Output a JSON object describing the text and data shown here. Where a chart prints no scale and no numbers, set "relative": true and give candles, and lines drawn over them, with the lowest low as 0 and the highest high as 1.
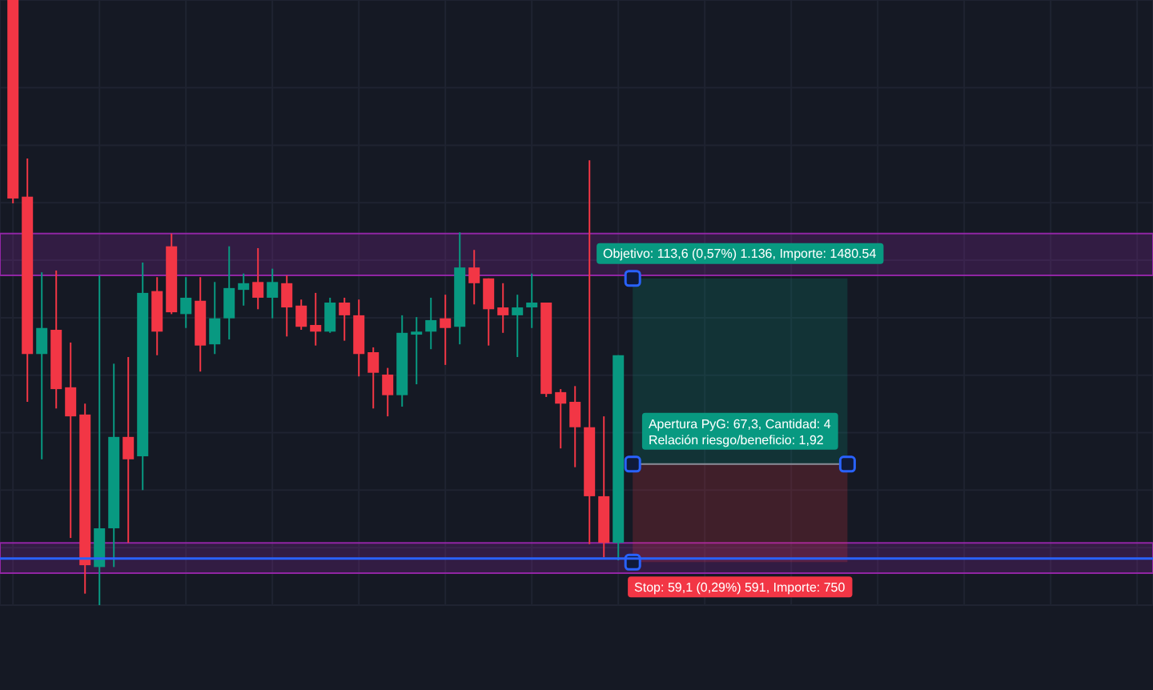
{
  "chart_data": {
    "type": "candlestick",
    "relative": true,
    "categories": [
      null,
      null,
      null,
      null,
      null,
      null,
      null,
      null,
      null,
      null,
      null,
      null,
      null,
      null,
      null,
      null,
      null,
      null,
      null,
      null,
      null,
      null,
      null,
      null,
      null,
      null,
      null,
      null,
      null,
      null,
      null,
      null,
      null,
      null,
      null,
      null,
      null,
      null,
      null,
      null,
      null,
      null,
      null,
      null,
      null,
      null,
      null,
      null,
      null,
      null,
      null,
      null,
      null,
      null,
      null,
      null,
      null,
      null,
      null,
      null,
      null,
      null,
      null,
      null,
      null,
      null,
      null,
      null,
      null,
      null,
      null,
      null,
      null,
      null,
      null,
      null,
      null,
      null,
      null,
      null
    ],
    "ohlc": [
      [
        1,
        1,
        0.664,
        0.672
      ],
      [
        0.675,
        0.738,
        0.336,
        0.415
      ],
      [
        0.415,
        0.55,
        0.241,
        0.458
      ],
      [
        0.455,
        0.553,
        0.325,
        0.357
      ],
      [
        0.36,
        0.434,
        0.111,
        0.312
      ],
      [
        0.315,
        0.333,
        0.019,
        0.066
      ],
      [
        0.063,
        0.545,
        0,
        0.127
      ],
      [
        0.127,
        0.399,
        0.063,
        0.278
      ],
      [
        0.278,
        0.41,
        0.103,
        0.241
      ],
      [
        0.246,
        0.566,
        0.19,
        0.516
      ],
      [
        0.519,
        0.542,
        0.413,
        0.452
      ],
      [
        0.593,
        0.614,
        0.481,
        0.484
      ],
      [
        0.481,
        0.542,
        0.458,
        0.508
      ],
      [
        0.503,
        0.542,
        0.386,
        0.429
      ],
      [
        0.431,
        0.534,
        0.415,
        0.474
      ],
      [
        0.474,
        0.593,
        0.439,
        0.524
      ],
      [
        0.521,
        0.548,
        0.495,
        0.532
      ],
      [
        0.534,
        0.59,
        0.489,
        0.508
      ],
      [
        0.508,
        0.556,
        0.474,
        0.534
      ],
      [
        0.532,
        0.545,
        0.444,
        0.492
      ],
      [
        0.495,
        0.505,
        0.455,
        0.46
      ],
      [
        0.463,
        0.516,
        0.429,
        0.452
      ],
      [
        0.452,
        0.508,
        0.45,
        0.5
      ],
      [
        0.5,
        0.508,
        0.437,
        0.479
      ],
      [
        0.479,
        0.505,
        0.378,
        0.415
      ],
      [
        0.418,
        0.426,
        0.325,
        0.384
      ],
      [
        0.381,
        0.392,
        0.312,
        0.347
      ],
      [
        0.347,
        0.479,
        0.328,
        0.45
      ],
      [
        0.447,
        0.476,
        0.365,
        0.452
      ],
      [
        0.452,
        0.508,
        0.423,
        0.471
      ],
      [
        0.474,
        0.513,
        0.397,
        0.458
      ],
      [
        0.46,
        0.616,
        0.431,
        0.558
      ],
      [
        0.558,
        0.587,
        0.497,
        0.532
      ],
      [
        0.54,
        0.54,
        0.429,
        0.489
      ],
      [
        0.492,
        0.532,
        0.45,
        0.479
      ],
      [
        0.479,
        0.513,
        0.41,
        0.492
      ],
      [
        0.492,
        0.548,
        0.458,
        0.5
      ],
      [
        0.5,
        0.5,
        0.344,
        0.349
      ],
      [
        0.352,
        0.357,
        0.259,
        0.333
      ],
      [
        0.336,
        0.362,
        0.228,
        0.294
      ],
      [
        0.294,
        0.735,
        0.101,
        0.18
      ],
      [
        0.18,
        0.312,
        0.079,
        0.103
      ],
      [
        0.103,
        0.413,
        0.074,
        0.413
      ],
      null,
      null,
      null,
      null,
      null,
      null,
      null,
      null,
      null,
      null,
      null,
      null,
      null,
      null,
      null,
      null,
      null,
      null,
      null,
      null,
      null,
      null,
      null,
      null,
      null,
      null,
      null,
      null,
      null,
      null,
      null,
      null,
      null,
      null,
      null,
      null,
      null
    ],
    "colors": [
      "#f23645",
      "#f23645",
      "#089981",
      "#f23645",
      "#f23645",
      "#f23645",
      "#089981",
      "#089981",
      "#f23645",
      "#089981",
      "#f23645",
      "#f23645",
      "#089981",
      "#f23645",
      "#089981",
      "#089981",
      "#089981",
      "#f23645",
      "#089981",
      "#f23645",
      "#f23645",
      "#f23645",
      "#089981",
      "#f23645",
      "#f23645",
      "#f23645",
      "#f23645",
      "#089981",
      "#089981",
      "#089981",
      "#f23645",
      "#089981",
      "#f23645",
      "#f23645",
      "#f23645",
      "#089981",
      "#089981",
      "#f23645",
      "#f23645",
      "#f23645",
      "#f23645",
      "#f23645",
      "#089981",
      null,
      null,
      null,
      null,
      null,
      null,
      null,
      null,
      null,
      null,
      null,
      null,
      null,
      null,
      null,
      null,
      null,
      null,
      null,
      null,
      null,
      null,
      null,
      null,
      null,
      null,
      null,
      null,
      null,
      null,
      null,
      null,
      null,
      null,
      null,
      null,
      null
    ],
    "grid": true,
    "bands": [
      {
        "axis": "y",
        "from": 0.545,
        "to": 0.614,
        "color": "#9c27b0"
      },
      {
        "axis": "y",
        "from": 0.053,
        "to": 0.103,
        "color": "#9c27b0"
      },
      {
        "axis": "y",
        "from": 0.233,
        "to": 0.54,
        "color": "#089981",
        "label": "Objetivo: 113,6 (0,57%) 1.136, Importe: 1480.54"
      },
      {
        "axis": "y",
        "from": 0.233,
        "to": 0.071,
        "color": "#f23645",
        "label": "Stop: 59,1 (0,29%) 591, Importe: 750"
      }
    ],
    "ref_lines": [
      {
        "axis": "y",
        "value": 0.077,
        "color": "#2962ff"
      },
      {
        "axis": "y",
        "value": 0.233,
        "color": "#8a8e99"
      }
    ],
    "annotations": [
      "Apertura PyG: 67,3, Cantidad: 4\nRelación riesgo/beneficio: 1,92"
    ]
  }
}
